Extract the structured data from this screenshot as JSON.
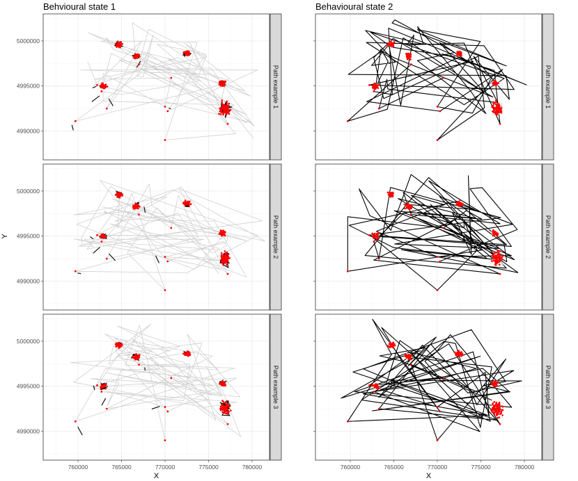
{
  "chart_data": {
    "type": "scatter",
    "subtype": "faceted path plot (line paths with point overlay)",
    "columns": [
      "Behvioural state 1",
      "Behavioural state 2"
    ],
    "rows": [
      "Path example 1",
      "Path example 2",
      "Path example 3"
    ],
    "xlabel": "X",
    "ylabel": "Y",
    "xlim": [
      756000,
      782000
    ],
    "ylim": [
      4986800,
      5003000
    ],
    "x_ticks": [
      760000,
      765000,
      770000,
      775000,
      780000
    ],
    "y_ticks": [
      4990000,
      4995000,
      5000000
    ],
    "x_tick_labels": [
      "760000",
      "765000",
      "770000",
      "775000",
      "780000"
    ],
    "y_tick_labels": [
      "4990000",
      "4995000",
      "5000000"
    ],
    "grid": true,
    "colors": {
      "active_path": "#000000",
      "inactive_path": "#d0d0d0",
      "points": "#ff0000",
      "strip_fill": "#d9d9d9",
      "panel_border": "#333333",
      "grid": "#ebebeb"
    },
    "clusters": [
      {
        "x": 764700,
        "y": 4999600
      },
      {
        "x": 766700,
        "y": 4998300
      },
      {
        "x": 772500,
        "y": 4998600
      },
      {
        "x": 776900,
        "y": 4992500
      },
      {
        "x": 776600,
        "y": 4995300
      },
      {
        "x": 762900,
        "y": 4995000
      }
    ],
    "isolated_points": [
      {
        "x": 759700,
        "y": 4991100
      },
      {
        "x": 762200,
        "y": 4995100
      },
      {
        "x": 762700,
        "y": 4994400
      },
      {
        "x": 763300,
        "y": 4992500
      },
      {
        "x": 767000,
        "y": 4997400
      },
      {
        "x": 770000,
        "y": 4992700
      },
      {
        "x": 770300,
        "y": 4992200
      },
      {
        "x": 770700,
        "y": 4995900
      },
      {
        "x": 770000,
        "y": 4989000
      },
      {
        "x": 777200,
        "y": 4990800
      }
    ]
  }
}
